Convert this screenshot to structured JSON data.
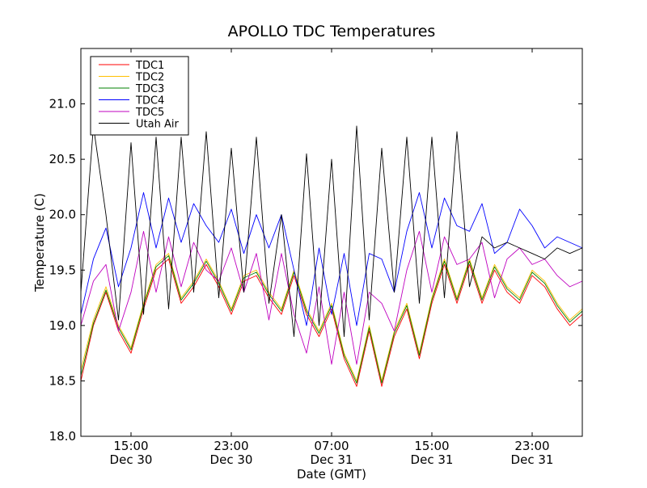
{
  "chart_data": {
    "type": "line",
    "title": "APOLLO TDC Temperatures",
    "xlabel": "Date (GMT)",
    "ylabel": "Temperature (C)",
    "ylim": [
      18.0,
      21.5
    ],
    "xlim": [
      0,
      40
    ],
    "yticks": [
      18.0,
      18.5,
      19.0,
      19.5,
      20.0,
      20.5,
      21.0
    ],
    "yticklabels": [
      "18.0",
      "18.5",
      "19.0",
      "19.5",
      "20.0",
      "20.5",
      "21.0"
    ],
    "xticks": [
      {
        "x": 4,
        "time": "15:00",
        "date": "Dec 30"
      },
      {
        "x": 12,
        "time": "23:00",
        "date": "Dec 30"
      },
      {
        "x": 20,
        "time": "07:00",
        "date": "Dec 31"
      },
      {
        "x": 28,
        "time": "15:00",
        "date": "Dec 31"
      },
      {
        "x": 36,
        "time": "23:00",
        "date": "Dec 31"
      }
    ],
    "legend_position": "top-left",
    "series": [
      {
        "name": "TDC1",
        "color": "#ff0000",
        "points": [
          [
            0,
            18.5
          ],
          [
            1,
            19.0
          ],
          [
            2,
            19.3
          ],
          [
            3,
            18.95
          ],
          [
            4,
            18.75
          ],
          [
            5,
            19.15
          ],
          [
            6,
            19.5
          ],
          [
            7,
            19.6
          ],
          [
            8,
            19.2
          ],
          [
            9,
            19.35
          ],
          [
            10,
            19.55
          ],
          [
            11,
            19.35
          ],
          [
            12,
            19.1
          ],
          [
            13,
            19.4
          ],
          [
            14,
            19.45
          ],
          [
            15,
            19.25
          ],
          [
            16,
            19.1
          ],
          [
            17,
            19.45
          ],
          [
            18,
            19.1
          ],
          [
            19,
            18.9
          ],
          [
            20,
            19.15
          ],
          [
            21,
            18.7
          ],
          [
            22,
            18.45
          ],
          [
            23,
            18.95
          ],
          [
            24,
            18.45
          ],
          [
            25,
            18.9
          ],
          [
            26,
            19.15
          ],
          [
            27,
            18.7
          ],
          [
            28,
            19.2
          ],
          [
            29,
            19.55
          ],
          [
            30,
            19.2
          ],
          [
            31,
            19.55
          ],
          [
            32,
            19.2
          ],
          [
            33,
            19.5
          ],
          [
            34,
            19.3
          ],
          [
            35,
            19.2
          ],
          [
            36,
            19.45
          ],
          [
            37,
            19.35
          ],
          [
            38,
            19.15
          ],
          [
            39,
            19.0
          ],
          [
            40,
            19.1
          ]
        ]
      },
      {
        "name": "TDC2",
        "color": "#ffbf00",
        "points": [
          [
            0,
            18.6
          ],
          [
            1,
            19.05
          ],
          [
            2,
            19.35
          ],
          [
            3,
            19.0
          ],
          [
            4,
            18.8
          ],
          [
            5,
            19.2
          ],
          [
            6,
            19.55
          ],
          [
            7,
            19.65
          ],
          [
            8,
            19.25
          ],
          [
            9,
            19.4
          ],
          [
            10,
            19.6
          ],
          [
            11,
            19.4
          ],
          [
            12,
            19.15
          ],
          [
            13,
            19.45
          ],
          [
            14,
            19.5
          ],
          [
            15,
            19.3
          ],
          [
            16,
            19.15
          ],
          [
            17,
            19.5
          ],
          [
            18,
            19.15
          ],
          [
            19,
            18.95
          ],
          [
            20,
            19.2
          ],
          [
            21,
            18.75
          ],
          [
            22,
            18.5
          ],
          [
            23,
            19.0
          ],
          [
            24,
            18.5
          ],
          [
            25,
            18.95
          ],
          [
            26,
            19.2
          ],
          [
            27,
            18.75
          ],
          [
            28,
            19.25
          ],
          [
            29,
            19.6
          ],
          [
            30,
            19.25
          ],
          [
            31,
            19.6
          ],
          [
            32,
            19.25
          ],
          [
            33,
            19.55
          ],
          [
            34,
            19.35
          ],
          [
            35,
            19.25
          ],
          [
            36,
            19.5
          ],
          [
            37,
            19.4
          ],
          [
            38,
            19.2
          ],
          [
            39,
            19.05
          ],
          [
            40,
            19.15
          ]
        ]
      },
      {
        "name": "TDC3",
        "color": "#008000",
        "points": [
          [
            0,
            18.55
          ],
          [
            1,
            19.02
          ],
          [
            2,
            19.32
          ],
          [
            3,
            18.98
          ],
          [
            4,
            18.78
          ],
          [
            5,
            19.18
          ],
          [
            6,
            19.53
          ],
          [
            7,
            19.63
          ],
          [
            8,
            19.23
          ],
          [
            9,
            19.38
          ],
          [
            10,
            19.58
          ],
          [
            11,
            19.38
          ],
          [
            12,
            19.13
          ],
          [
            13,
            19.43
          ],
          [
            14,
            19.48
          ],
          [
            15,
            19.28
          ],
          [
            16,
            19.13
          ],
          [
            17,
            19.48
          ],
          [
            18,
            19.13
          ],
          [
            19,
            18.93
          ],
          [
            20,
            19.18
          ],
          [
            21,
            18.73
          ],
          [
            22,
            18.48
          ],
          [
            23,
            18.98
          ],
          [
            24,
            18.48
          ],
          [
            25,
            18.93
          ],
          [
            26,
            19.18
          ],
          [
            27,
            18.73
          ],
          [
            28,
            19.23
          ],
          [
            29,
            19.58
          ],
          [
            30,
            19.23
          ],
          [
            31,
            19.58
          ],
          [
            32,
            19.23
          ],
          [
            33,
            19.53
          ],
          [
            34,
            19.33
          ],
          [
            35,
            19.23
          ],
          [
            36,
            19.48
          ],
          [
            37,
            19.38
          ],
          [
            38,
            19.18
          ],
          [
            39,
            19.03
          ],
          [
            40,
            19.13
          ]
        ]
      },
      {
        "name": "TDC4",
        "color": "#0000ff",
        "points": [
          [
            0,
            19.1
          ],
          [
            1,
            19.6
          ],
          [
            2,
            19.88
          ],
          [
            3,
            19.35
          ],
          [
            4,
            19.7
          ],
          [
            5,
            20.2
          ],
          [
            6,
            19.7
          ],
          [
            7,
            20.15
          ],
          [
            8,
            19.75
          ],
          [
            9,
            20.1
          ],
          [
            10,
            19.9
          ],
          [
            11,
            19.75
          ],
          [
            12,
            20.05
          ],
          [
            13,
            19.65
          ],
          [
            14,
            20.0
          ],
          [
            15,
            19.7
          ],
          [
            16,
            20.0
          ],
          [
            17,
            19.5
          ],
          [
            18,
            19.0
          ],
          [
            19,
            19.7
          ],
          [
            20,
            19.1
          ],
          [
            21,
            19.65
          ],
          [
            22,
            19.0
          ],
          [
            23,
            19.65
          ],
          [
            24,
            19.6
          ],
          [
            25,
            19.3
          ],
          [
            26,
            19.85
          ],
          [
            27,
            20.2
          ],
          [
            28,
            19.7
          ],
          [
            29,
            20.15
          ],
          [
            30,
            19.9
          ],
          [
            31,
            19.85
          ],
          [
            32,
            20.1
          ],
          [
            33,
            19.65
          ],
          [
            34,
            19.75
          ],
          [
            35,
            20.05
          ],
          [
            36,
            19.9
          ],
          [
            37,
            19.7
          ],
          [
            38,
            19.8
          ],
          [
            39,
            19.75
          ],
          [
            40,
            19.7
          ]
        ]
      },
      {
        "name": "TDC5",
        "color": "#bf00bf",
        "points": [
          [
            0,
            19.0
          ],
          [
            1,
            19.4
          ],
          [
            2,
            19.55
          ],
          [
            3,
            18.95
          ],
          [
            4,
            19.3
          ],
          [
            5,
            19.85
          ],
          [
            6,
            19.3
          ],
          [
            7,
            19.8
          ],
          [
            8,
            19.35
          ],
          [
            9,
            19.75
          ],
          [
            10,
            19.5
          ],
          [
            11,
            19.4
          ],
          [
            12,
            19.7
          ],
          [
            13,
            19.3
          ],
          [
            14,
            19.65
          ],
          [
            15,
            19.05
          ],
          [
            16,
            19.65
          ],
          [
            17,
            19.1
          ],
          [
            18,
            18.75
          ],
          [
            19,
            19.35
          ],
          [
            20,
            18.65
          ],
          [
            21,
            19.3
          ],
          [
            22,
            18.65
          ],
          [
            23,
            19.3
          ],
          [
            24,
            19.2
          ],
          [
            25,
            18.95
          ],
          [
            26,
            19.5
          ],
          [
            27,
            19.85
          ],
          [
            28,
            19.3
          ],
          [
            29,
            19.8
          ],
          [
            30,
            19.55
          ],
          [
            31,
            19.6
          ],
          [
            32,
            19.75
          ],
          [
            33,
            19.25
          ],
          [
            34,
            19.6
          ],
          [
            35,
            19.7
          ],
          [
            36,
            19.55
          ],
          [
            37,
            19.6
          ],
          [
            38,
            19.45
          ],
          [
            39,
            19.35
          ],
          [
            40,
            19.4
          ]
        ]
      },
      {
        "name": "Utah Air",
        "color": "#000000",
        "points": [
          [
            0,
            19.3
          ],
          [
            1,
            20.8
          ],
          [
            2,
            20.0
          ],
          [
            3,
            19.05
          ],
          [
            4,
            20.65
          ],
          [
            5,
            19.1
          ],
          [
            6,
            20.7
          ],
          [
            7,
            19.15
          ],
          [
            8,
            20.7
          ],
          [
            9,
            19.3
          ],
          [
            10,
            20.75
          ],
          [
            11,
            19.25
          ],
          [
            12,
            20.6
          ],
          [
            13,
            19.3
          ],
          [
            14,
            20.7
          ],
          [
            15,
            19.2
          ],
          [
            16,
            20.0
          ],
          [
            17,
            18.9
          ],
          [
            18,
            20.55
          ],
          [
            19,
            19.0
          ],
          [
            20,
            20.5
          ],
          [
            21,
            18.9
          ],
          [
            22,
            20.8
          ],
          [
            23,
            19.05
          ],
          [
            24,
            20.6
          ],
          [
            25,
            19.3
          ],
          [
            26,
            20.7
          ],
          [
            27,
            19.2
          ],
          [
            28,
            20.7
          ],
          [
            29,
            19.25
          ],
          [
            30,
            20.75
          ],
          [
            31,
            19.35
          ],
          [
            32,
            19.8
          ],
          [
            33,
            19.7
          ],
          [
            34,
            19.75
          ],
          [
            35,
            19.7
          ],
          [
            36,
            19.65
          ],
          [
            37,
            19.6
          ],
          [
            38,
            19.7
          ],
          [
            39,
            19.65
          ],
          [
            40,
            19.7
          ]
        ]
      }
    ]
  }
}
